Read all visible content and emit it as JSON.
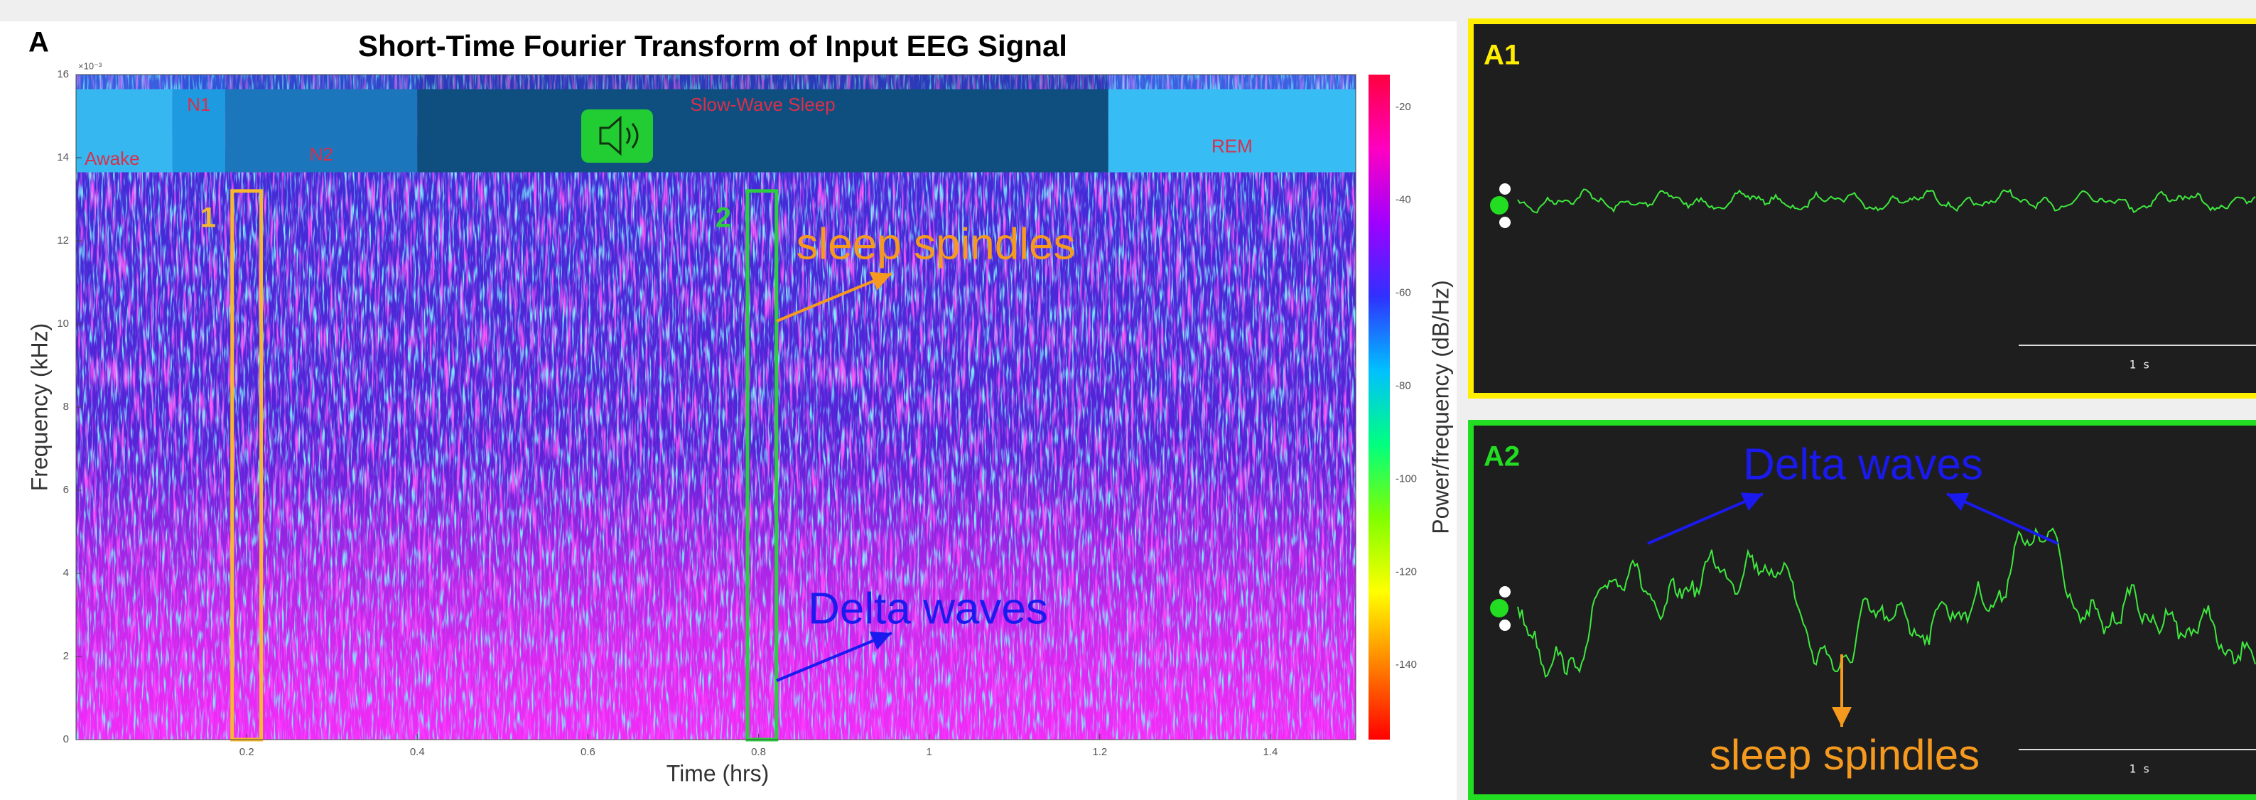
{
  "panel_label": "A",
  "chart_data": {
    "type": "spectrogram",
    "title": "Short-Time Fourier Transform of Input EEG Signal",
    "x_label": "Time (hrs)",
    "y_label": "Frequency (kHz)",
    "y_exponent": "×10⁻³",
    "xlim": [
      0,
      1.5
    ],
    "xticks": [
      0.2,
      0.4,
      0.6,
      0.8,
      1,
      1.2,
      1.4
    ],
    "ylim": [
      0,
      16
    ],
    "yticks": [
      0,
      2,
      4,
      6,
      8,
      10,
      12,
      14,
      16
    ],
    "colorbar": {
      "label": "Power/frequency (dB/Hz)",
      "lim": [
        -156,
        -13
      ],
      "ticks": [
        -140,
        -120,
        -100,
        -80,
        -60,
        -40,
        -20
      ],
      "colormap": [
        "#ff0040",
        "#ff00c0",
        "#a000ff",
        "#3030ff",
        "#00c0ff",
        "#00ff80",
        "#80ff00",
        "#ffff00",
        "#ff8000",
        "#ff0000"
      ]
    },
    "stage_band": [
      13.65,
      15.65
    ],
    "stages": [
      {
        "name": "Awake",
        "start": 0,
        "end": 0.113,
        "color": "#36b7f0"
      },
      {
        "name": "N1",
        "start": 0.113,
        "end": 0.175,
        "color": "#1d9ae0"
      },
      {
        "name": "N2",
        "start": 0.175,
        "end": 0.4,
        "color": "#1b76bb"
      },
      {
        "name": "Slow-Wave Sleep",
        "start": 0.4,
        "end": 1.21,
        "color": "#0e4f80"
      },
      {
        "name": "REM",
        "start": 1.21,
        "end": 1.5,
        "color": "#37bdf4"
      }
    ],
    "windows": [
      {
        "label": "1",
        "start": 0.183,
        "end": 0.217,
        "top": 13.2,
        "color": "#f5b82e"
      },
      {
        "label": "2",
        "start": 0.787,
        "end": 0.821,
        "top": 13.2,
        "color": "#2ecc40"
      }
    ],
    "annotations": [
      {
        "text": "sleep spindles",
        "color": "#f59a1f"
      },
      {
        "text": "Delta waves",
        "color": "#1a1aee"
      }
    ]
  },
  "insets": [
    {
      "label": "A1",
      "border": "#ffee00",
      "scale_bar": "1 s"
    },
    {
      "label": "A2",
      "border": "#22dd22",
      "scale_bar": "1 s",
      "annotations": [
        {
          "text": "Delta waves",
          "color": "#1a1aee"
        },
        {
          "text": "sleep spindles",
          "color": "#f59a1f"
        }
      ]
    }
  ]
}
